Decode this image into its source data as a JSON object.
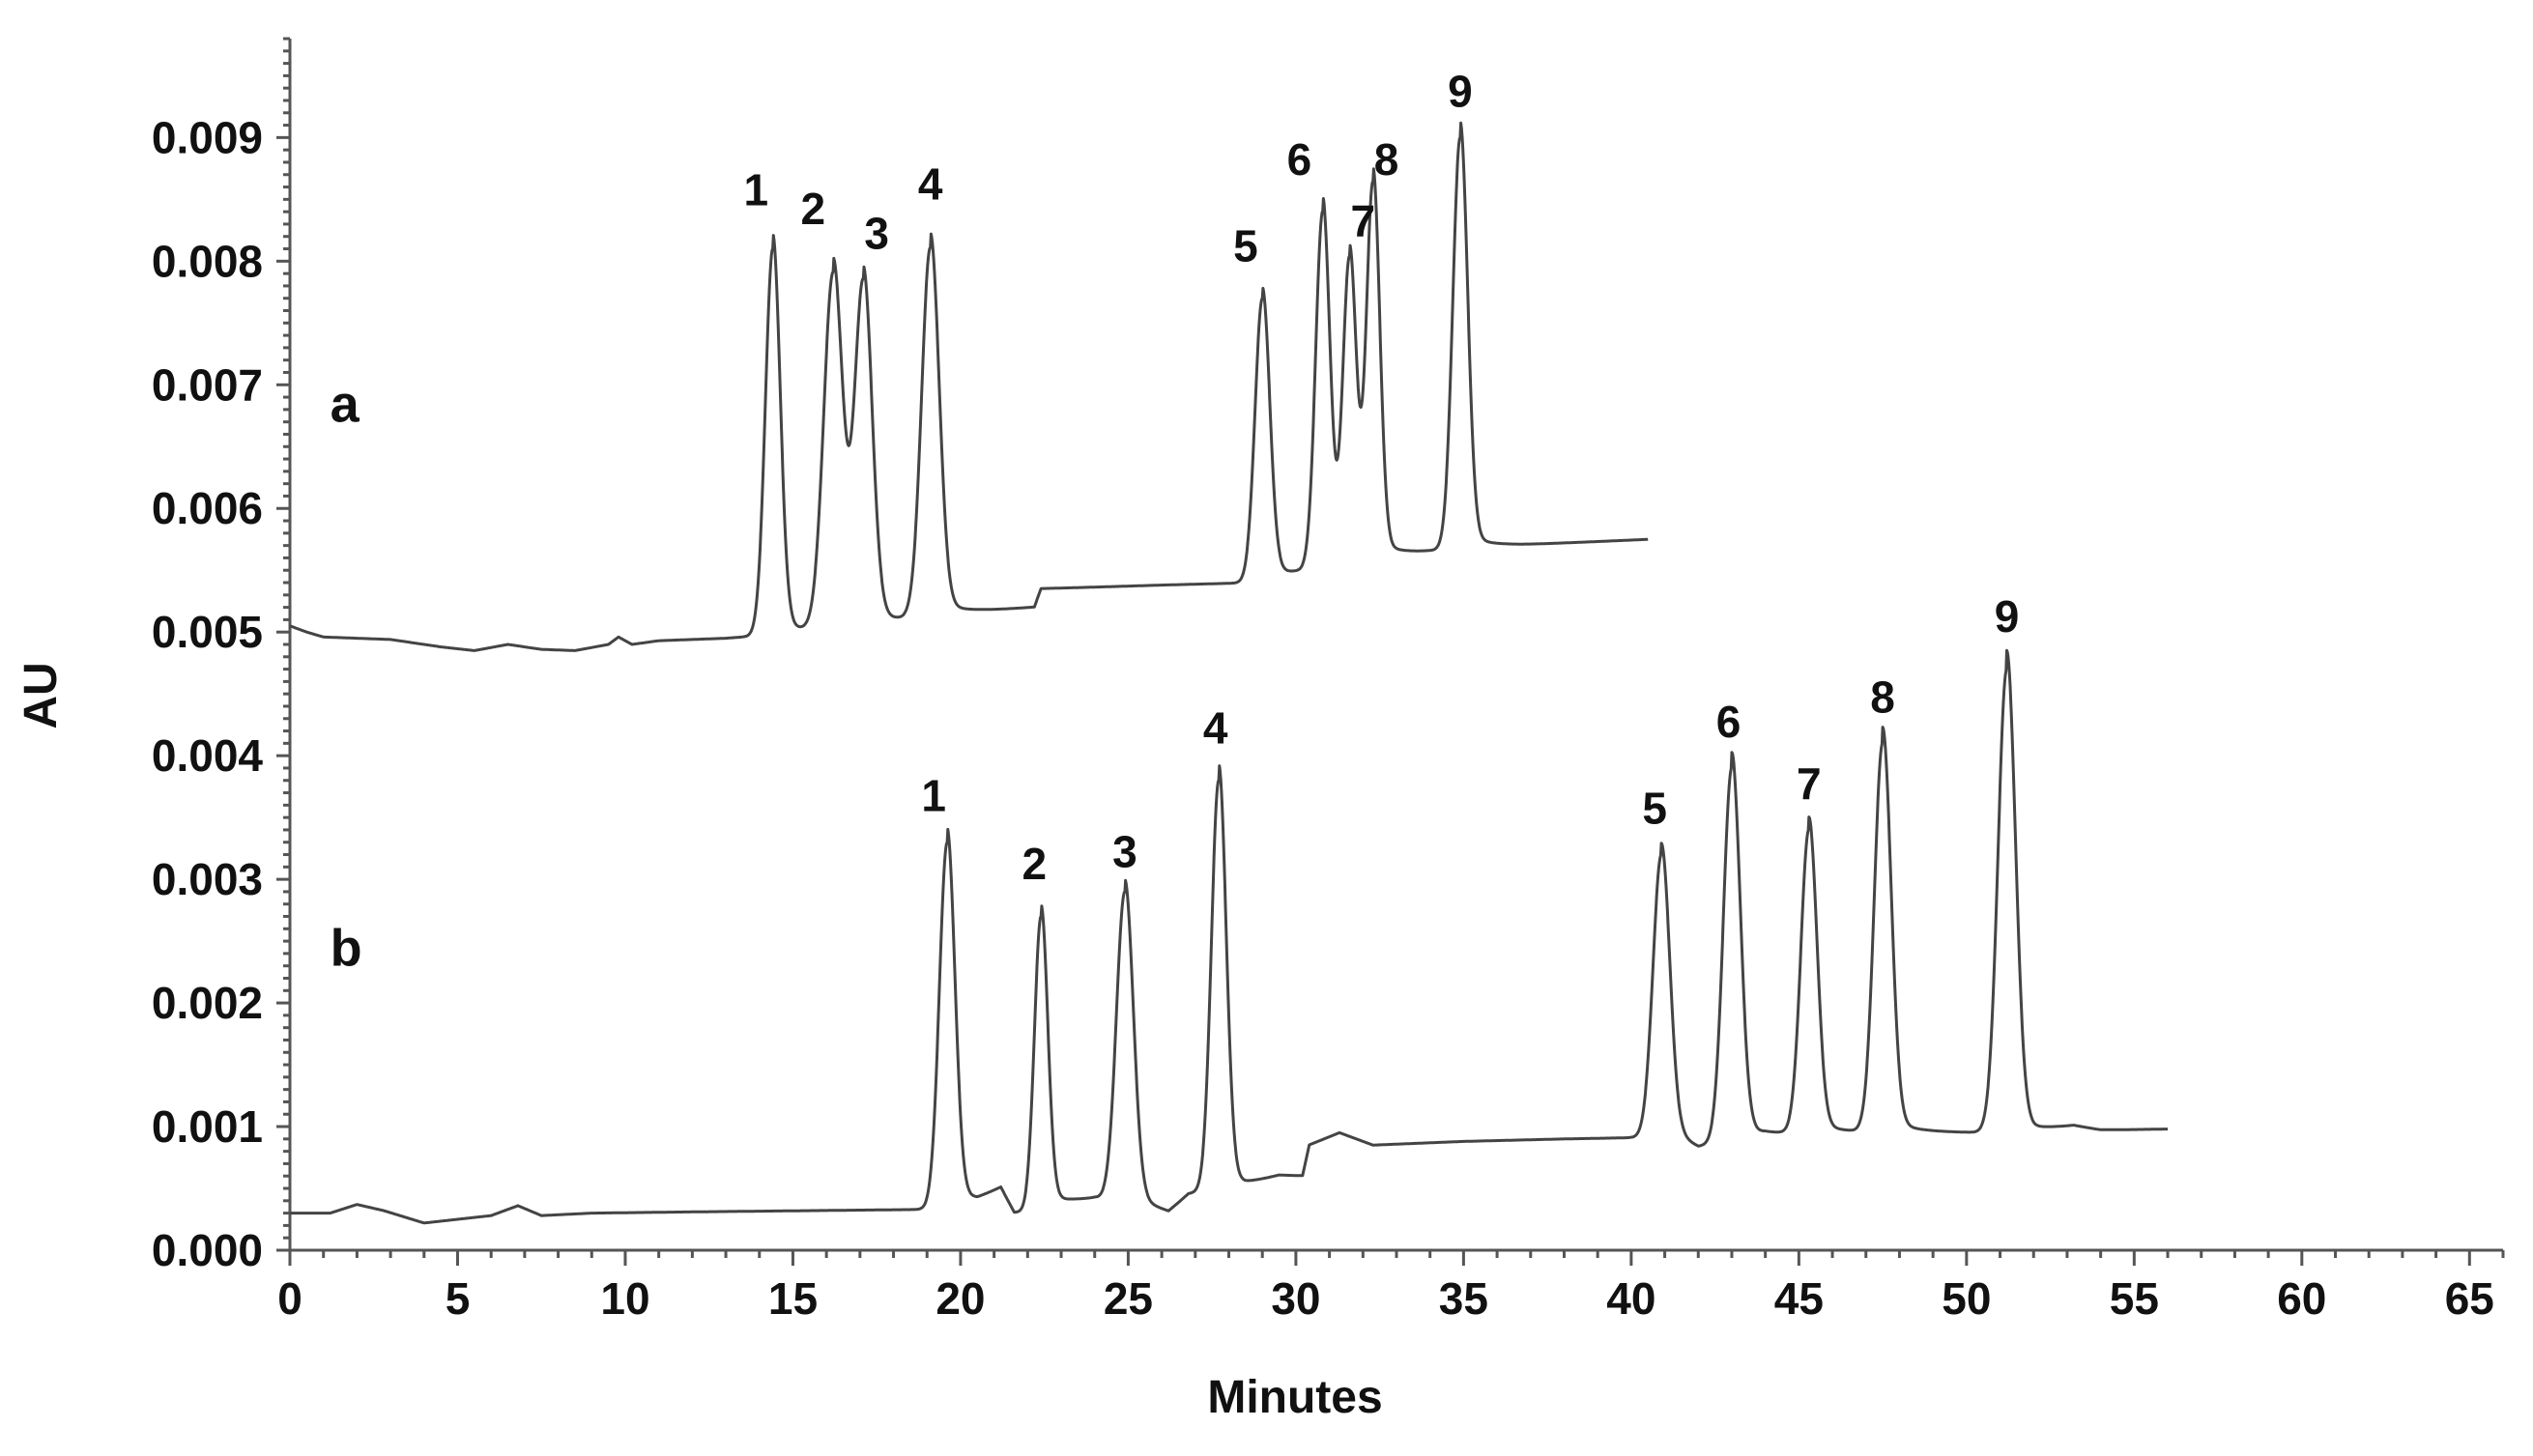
{
  "chart_data": {
    "type": "line",
    "title": "",
    "xlabel": "Minutes",
    "ylabel": "AU",
    "xlim": [
      0,
      66
    ],
    "ylim": [
      0,
      0.0098
    ],
    "xticks": [
      0,
      5,
      10,
      15,
      20,
      25,
      30,
      35,
      40,
      45,
      50,
      55,
      60,
      65
    ],
    "xtick_labels": [
      "0",
      "5",
      "10",
      "15",
      "20",
      "25",
      "30",
      "35",
      "40",
      "45",
      "50",
      "55",
      "60",
      "65"
    ],
    "yticks": [
      0.0,
      0.001,
      0.002,
      0.003,
      0.004,
      0.005,
      0.006,
      0.007,
      0.008,
      0.009
    ],
    "ytick_labels": [
      "0.000",
      "0.001",
      "0.002",
      "0.003",
      "0.004",
      "0.005",
      "0.006",
      "0.007",
      "0.008",
      "0.009"
    ],
    "grid": false,
    "colors": {
      "trace": "#444444",
      "text": "#111111",
      "axis": "#555555"
    },
    "series": [
      {
        "label": "a",
        "label_position": [
          1.2,
          0.0067
        ],
        "x_end": 40.5,
        "baseline": [
          [
            0,
            0.00505
          ],
          [
            0.5,
            0.005
          ],
          [
            1.0,
            0.00496
          ],
          [
            3.0,
            0.00494
          ],
          [
            4.5,
            0.00488
          ],
          [
            5.5,
            0.00485
          ],
          [
            6.5,
            0.0049
          ],
          [
            7.5,
            0.00486
          ],
          [
            8.5,
            0.00485
          ],
          [
            9.5,
            0.0049
          ],
          [
            9.8,
            0.00496
          ],
          [
            10.2,
            0.0049
          ],
          [
            11,
            0.00493
          ],
          [
            13,
            0.00495
          ],
          [
            14,
            0.00497
          ],
          [
            17.5,
            0.00505
          ],
          [
            20,
            0.00515
          ],
          [
            22.2,
            0.0052
          ],
          [
            22.4,
            0.00535
          ],
          [
            26,
            0.00538
          ],
          [
            28.8,
            0.0054
          ],
          [
            29.5,
            0.00545
          ],
          [
            31.5,
            0.00555
          ],
          [
            33,
            0.00562
          ],
          [
            35,
            0.00568
          ],
          [
            38,
            0.00572
          ],
          [
            40.5,
            0.00575
          ]
        ],
        "peaks": [
          {
            "id": "1",
            "x": 14.4,
            "y": 0.0081,
            "w": 0.22,
            "label_x": 13.9,
            "label_y": 0.00845
          },
          {
            "id": "2",
            "x": 16.2,
            "y": 0.0079,
            "w": 0.28,
            "label_x": 15.6,
            "label_y": 0.0083
          },
          {
            "id": "3",
            "x": 17.1,
            "y": 0.0078,
            "w": 0.26,
            "label_x": 17.5,
            "label_y": 0.0081
          },
          {
            "id": "4",
            "x": 19.1,
            "y": 0.0081,
            "w": 0.26,
            "label_x": 19.1,
            "label_y": 0.0085
          },
          {
            "id": "5",
            "x": 29.0,
            "y": 0.0077,
            "w": 0.22,
            "label_x": 28.5,
            "label_y": 0.008
          },
          {
            "id": "6",
            "x": 30.8,
            "y": 0.0084,
            "w": 0.21,
            "label_x": 30.1,
            "label_y": 0.0087
          },
          {
            "id": "7",
            "x": 31.6,
            "y": 0.008,
            "w": 0.2,
            "label_x": 32.0,
            "label_y": 0.0082
          },
          {
            "id": "8",
            "x": 32.3,
            "y": 0.0086,
            "w": 0.2,
            "label_x": 32.7,
            "label_y": 0.0087
          },
          {
            "id": "9",
            "x": 34.9,
            "y": 0.009,
            "w": 0.22,
            "label_x": 34.9,
            "label_y": 0.00925
          }
        ]
      },
      {
        "label": "b",
        "label_position": [
          1.2,
          0.0023
        ],
        "x_end": 56,
        "baseline": [
          [
            0,
            0.0003
          ],
          [
            1.2,
            0.0003
          ],
          [
            2.0,
            0.00037
          ],
          [
            2.8,
            0.00032
          ],
          [
            4.0,
            0.00022
          ],
          [
            5.0,
            0.00025
          ],
          [
            6.0,
            0.00028
          ],
          [
            6.8,
            0.00036
          ],
          [
            7.5,
            0.00028
          ],
          [
            9,
            0.0003
          ],
          [
            12,
            0.00031
          ],
          [
            19,
            0.00033
          ],
          [
            20.5,
            0.0004
          ],
          [
            21.2,
            0.0005
          ],
          [
            21.6,
            0.0003
          ],
          [
            22.2,
            0.0003
          ],
          [
            23,
            0.00038
          ],
          [
            24,
            0.00042
          ],
          [
            25.5,
            0.00035
          ],
          [
            26.2,
            0.0003
          ],
          [
            26.8,
            0.00045
          ],
          [
            28.5,
            0.00052
          ],
          [
            29.5,
            0.0006
          ],
          [
            30.2,
            0.0006
          ],
          [
            30.4,
            0.00085
          ],
          [
            31.3,
            0.00095
          ],
          [
            32.3,
            0.00085
          ],
          [
            35,
            0.00088
          ],
          [
            38,
            0.0009
          ],
          [
            40,
            0.00091
          ],
          [
            41.5,
            0.00088
          ],
          [
            42,
            0.00082
          ],
          [
            44,
            0.00093
          ],
          [
            46,
            0.00095
          ],
          [
            48,
            0.00095
          ],
          [
            52,
            0.00095
          ],
          [
            53.2,
            0.001
          ],
          [
            54,
            0.00097
          ],
          [
            56,
            0.00098
          ]
        ],
        "peaks": [
          {
            "id": "1",
            "x": 19.6,
            "y": 0.0033,
            "w": 0.23,
            "label_x": 19.2,
            "label_y": 0.00355
          },
          {
            "id": "2",
            "x": 22.4,
            "y": 0.0027,
            "w": 0.2,
            "label_x": 22.2,
            "label_y": 0.003
          },
          {
            "id": "3",
            "x": 24.9,
            "y": 0.0029,
            "w": 0.25,
            "label_x": 24.9,
            "label_y": 0.0031
          },
          {
            "id": "4",
            "x": 27.7,
            "y": 0.0038,
            "w": 0.22,
            "label_x": 27.6,
            "label_y": 0.0041
          },
          {
            "id": "5",
            "x": 40.9,
            "y": 0.0032,
            "w": 0.25,
            "label_x": 40.7,
            "label_y": 0.00345
          },
          {
            "id": "6",
            "x": 43.0,
            "y": 0.0039,
            "w": 0.25,
            "label_x": 42.9,
            "label_y": 0.00415
          },
          {
            "id": "7",
            "x": 45.3,
            "y": 0.0034,
            "w": 0.24,
            "label_x": 45.3,
            "label_y": 0.00365
          },
          {
            "id": "8",
            "x": 47.5,
            "y": 0.0041,
            "w": 0.25,
            "label_x": 47.5,
            "label_y": 0.00435
          },
          {
            "id": "9",
            "x": 51.2,
            "y": 0.0047,
            "w": 0.26,
            "label_x": 51.2,
            "label_y": 0.005
          }
        ]
      }
    ]
  }
}
